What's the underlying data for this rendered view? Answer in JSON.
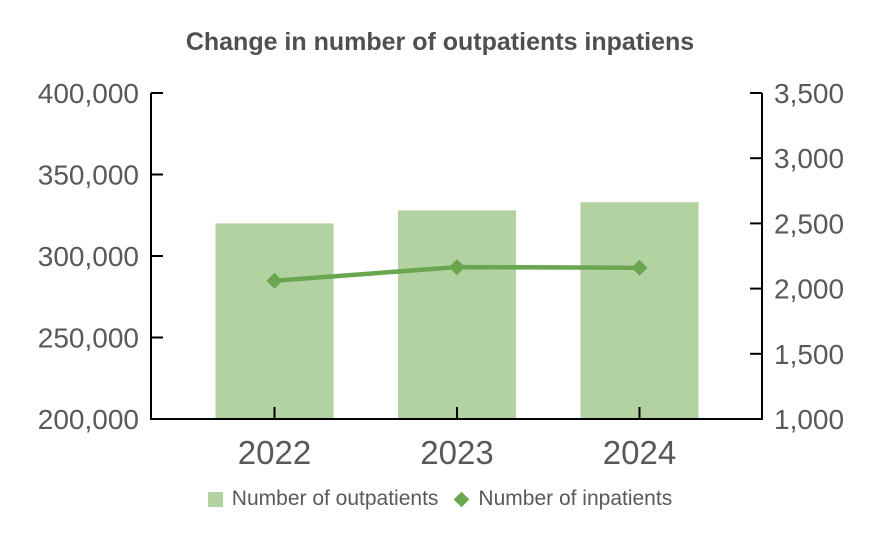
{
  "chart_data": {
    "type": "bar",
    "subtype": "combo-bar-line",
    "title": "Change in number of outpatients inpatiens",
    "categories": [
      "2022",
      "2023",
      "2024"
    ],
    "series": [
      {
        "name": "Number of outpatients",
        "chart": "bar",
        "axis": "left",
        "values": [
          320000,
          328000,
          333000
        ],
        "color": "#b2d3a1",
        "marker": "square"
      },
      {
        "name": "Number of inpatients",
        "chart": "line",
        "axis": "right",
        "values": [
          2060,
          2165,
          2160
        ],
        "color": "#69a64f",
        "marker": "diamond"
      }
    ],
    "left_axis": {
      "min": 200000,
      "max": 400000,
      "step": 50000,
      "tick_labels": [
        "400,000",
        "350,000",
        "300,000",
        "250,000",
        "200,000"
      ]
    },
    "right_axis": {
      "min": 1000,
      "max": 3500,
      "step": 500,
      "tick_labels": [
        "3,500",
        "3,000",
        "2,500",
        "2,000",
        "1,500",
        "1,000"
      ]
    },
    "grid": false,
    "legend_position": "bottom",
    "text_color": "#595959",
    "title_color": "#4f4f4f",
    "axis_line_color": "#000000"
  }
}
